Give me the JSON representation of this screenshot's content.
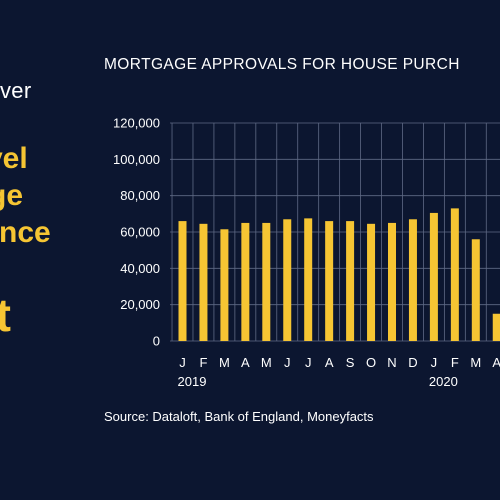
{
  "left_panel": {
    "small_text": "ver",
    "headline_lines": [
      "vel",
      "ge",
      "since"
    ],
    "headline_big": "st"
  },
  "chart_data": {
    "type": "bar",
    "title": "MORTGAGE APPROVALS FOR HOUSE PURCH",
    "categories": [
      "J",
      "F",
      "M",
      "A",
      "M",
      "J",
      "J",
      "A",
      "S",
      "O",
      "N",
      "D",
      "J",
      "F",
      "M",
      "A"
    ],
    "year_labels": [
      {
        "label": "2019",
        "category_index": 0
      },
      {
        "label": "2020",
        "category_index": 12
      }
    ],
    "values": [
      66000,
      64500,
      61500,
      65000,
      65000,
      67000,
      67500,
      66000,
      66000,
      64500,
      65000,
      67000,
      70500,
      73000,
      56000,
      15000
    ],
    "y_ticks": [
      "0",
      "20,000",
      "40,000",
      "60,000",
      "80,000",
      "100,000",
      "120,000"
    ],
    "ylim": [
      0,
      120000
    ],
    "xlabel": "",
    "ylabel": "",
    "grid": true,
    "colors": {
      "bar": "#f6c533",
      "grid": "#5f6a85",
      "background": "#0c1630",
      "text": "#ffffff"
    }
  },
  "source": "Source: Dataloft, Bank of England, Moneyfacts"
}
